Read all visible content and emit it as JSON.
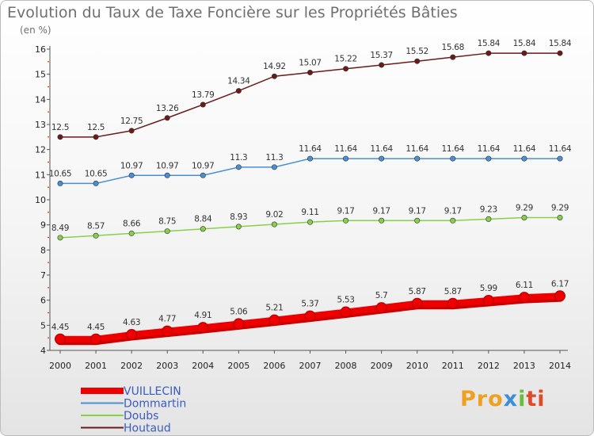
{
  "title": "Evolution du Taux de Taxe Foncière sur les Propriétés Bâties",
  "unit": "(en %)",
  "logo": {
    "text": "Proxiti",
    "colors": [
      "#f0a020",
      "#3a8fd8",
      "#6abf3a",
      "#e04a2a"
    ]
  },
  "chart_data": {
    "type": "line",
    "title": "Evolution du Taux de Taxe Foncière sur les Propriétés Bâties",
    "ylabel": "(en %)",
    "xlabel": "",
    "x": [
      "2000",
      "2001",
      "2002",
      "2003",
      "2004",
      "2005",
      "2006",
      "2007",
      "2008",
      "2009",
      "2010",
      "2011",
      "2012",
      "2013",
      "2014"
    ],
    "ylim": [
      4,
      16
    ],
    "yticks": [
      4,
      5,
      6,
      7,
      8,
      9,
      10,
      11,
      12,
      13,
      14,
      15,
      16
    ],
    "grid": false,
    "legend": "bottom-left",
    "series": [
      {
        "name": "VUILLECIN",
        "color": "#ee0000",
        "bold": true,
        "values": [
          4.45,
          4.45,
          4.63,
          4.77,
          4.91,
          5.06,
          5.21,
          5.37,
          5.53,
          5.7,
          5.87,
          5.87,
          5.99,
          6.11,
          6.17
        ],
        "labels": [
          "4.45",
          "4.45",
          "4.63",
          "4.77",
          "4.91",
          "5.06",
          "5.21",
          "5.37",
          "5.53",
          "5.7",
          "5.87",
          "5.87",
          "5.99",
          "6.11",
          "6.17"
        ]
      },
      {
        "name": "Dommartin",
        "color": "#4a8fd0",
        "values": [
          10.65,
          10.65,
          10.97,
          10.97,
          10.97,
          11.3,
          11.3,
          11.64,
          11.64,
          11.64,
          11.64,
          11.64,
          11.64,
          11.64,
          11.64
        ],
        "labels": [
          "10.65",
          "10.65",
          "10.97",
          "10.97",
          "10.97",
          "11.3",
          "11.3",
          "11.64",
          "11.64",
          "11.64",
          "11.64",
          "11.64",
          "11.64",
          "11.64",
          "11.64"
        ]
      },
      {
        "name": "Doubs",
        "color": "#88d04a",
        "values": [
          8.49,
          8.57,
          8.66,
          8.75,
          8.84,
          8.93,
          9.02,
          9.11,
          9.17,
          9.17,
          9.17,
          9.17,
          9.23,
          9.29,
          9.29
        ],
        "labels": [
          "8.49",
          "8.57",
          "8.66",
          "8.75",
          "8.84",
          "8.93",
          "9.02",
          "9.11",
          "9.17",
          "9.17",
          "9.17",
          "9.17",
          "9.23",
          "9.29",
          "9.29"
        ]
      },
      {
        "name": "Houtaud",
        "color": "#6b1a1a",
        "values": [
          12.5,
          12.5,
          12.75,
          13.26,
          13.79,
          14.34,
          14.92,
          15.07,
          15.22,
          15.37,
          15.52,
          15.68,
          15.84,
          15.84,
          15.84
        ],
        "labels": [
          "12.5",
          "12.5",
          "12.75",
          "13.26",
          "13.79",
          "14.34",
          "14.92",
          "15.07",
          "15.22",
          "15.37",
          "15.52",
          "15.68",
          "15.84",
          "15.84",
          "15.84"
        ]
      }
    ]
  }
}
